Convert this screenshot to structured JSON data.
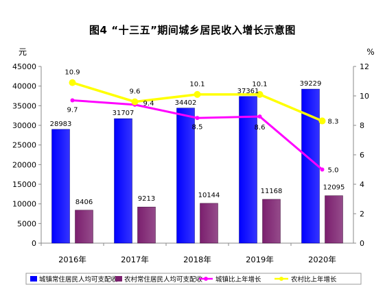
{
  "chart_data": {
    "type": "bar",
    "title": "图4 “十三五”期间城乡居民收入增长示意图",
    "categories": [
      "2016年",
      "2017年",
      "2018年",
      "2019年",
      "2020年"
    ],
    "y_left": {
      "unit": "元",
      "range": [
        0,
        45000
      ],
      "ticks": [
        "0",
        "5000",
        "10000",
        "15000",
        "20000",
        "25000",
        "30000",
        "35000",
        "40000",
        "45000"
      ]
    },
    "y_right": {
      "unit": "%",
      "range": [
        0,
        12
      ],
      "ticks": [
        "0",
        "2",
        "4",
        "6",
        "8",
        "10",
        "12"
      ]
    },
    "series": [
      {
        "name": "城镇常住居民人均可支配收",
        "kind": "bar",
        "color": "#0000ff",
        "values": [
          28983,
          31707,
          34402,
          37361,
          39229
        ],
        "labels": [
          "28983",
          "31707",
          "34402",
          "37361",
          "39229"
        ]
      },
      {
        "name": "农村常住居民人均可支配收",
        "kind": "bar",
        "color": "#7b1f6e",
        "values": [
          8406,
          9213,
          10144,
          11168,
          12095
        ],
        "labels": [
          "8406",
          "9213",
          "10144",
          "11168",
          "12095"
        ]
      },
      {
        "name": "城镇比上年增长",
        "kind": "line",
        "axis": "right",
        "color": "#ff00ff",
        "values": [
          9.7,
          9.4,
          8.5,
          8.6,
          5.0
        ],
        "labels": [
          "9.7",
          "9.4",
          "8.5",
          "8.6",
          "5.0"
        ]
      },
      {
        "name": "农村比上年增长",
        "kind": "line",
        "axis": "right",
        "color": "#ffff00",
        "values": [
          10.9,
          9.6,
          10.1,
          10.1,
          8.3
        ],
        "labels": [
          "10.9",
          "9.6",
          "10.1",
          "10.1",
          "8.3"
        ]
      }
    ],
    "grid": false,
    "legend": "bottom"
  }
}
